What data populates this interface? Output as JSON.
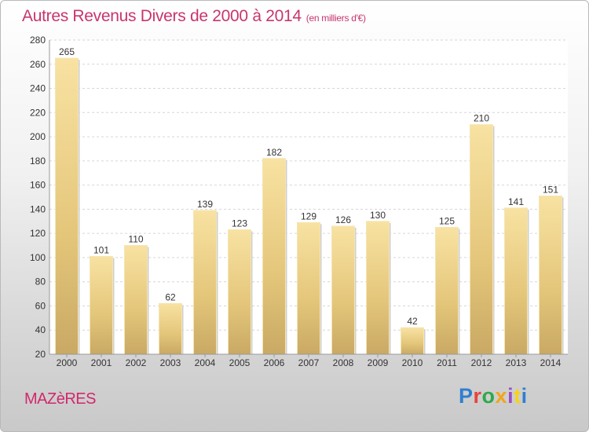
{
  "chart_data": {
    "type": "bar",
    "title": "Autres Revenus Divers de 2000 à 2014",
    "unit_note": "(en milliers d'€)",
    "categories": [
      "2000",
      "2001",
      "2002",
      "2003",
      "2004",
      "2005",
      "2006",
      "2007",
      "2008",
      "2009",
      "2010",
      "2011",
      "2012",
      "2013",
      "2014"
    ],
    "values": [
      265,
      101,
      110,
      62,
      139,
      123,
      182,
      129,
      126,
      130,
      42,
      125,
      210,
      141,
      151
    ],
    "ylim": [
      20,
      280
    ],
    "yticks": [
      20,
      40,
      60,
      80,
      100,
      120,
      140,
      160,
      180,
      200,
      220,
      240,
      260,
      280
    ],
    "xlabel": "",
    "ylabel": "",
    "grid": true,
    "bar_color": "#e6c97e",
    "title_color": "#c8356e"
  },
  "footer": {
    "city": "MAZèRES",
    "brand": "Proxiti",
    "brand_colors": [
      "#2f7fd0",
      "#e8423b",
      "#2fa84a",
      "#f2a51a",
      "#9b4fc4",
      "#f6d21e",
      "#2f7fd0"
    ]
  }
}
